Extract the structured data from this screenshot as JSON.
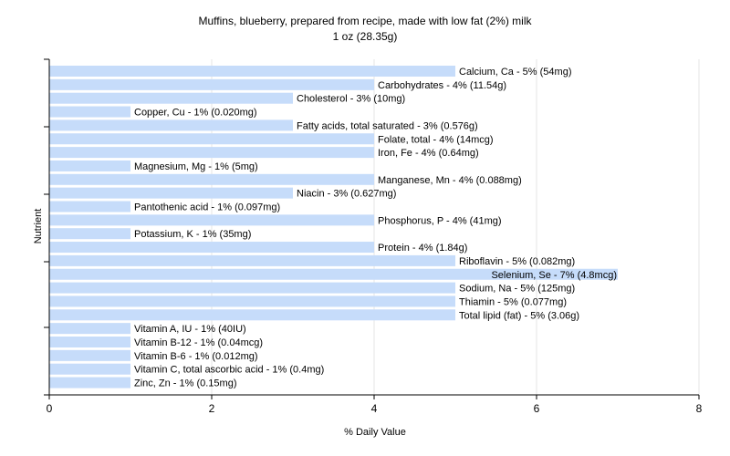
{
  "chart_data": {
    "type": "bar",
    "orientation": "horizontal",
    "title": "Muffins, blueberry, prepared from recipe, made with low fat (2%) milk",
    "subtitle": "1 oz (28.35g)",
    "xlabel": "% Daily Value",
    "ylabel": "Nutrient",
    "xlim": [
      0,
      8
    ],
    "xticks": [
      0,
      2,
      4,
      6,
      8
    ],
    "grid": true,
    "bar_color": "#c6dcfa",
    "categories": [
      "Calcium, Ca",
      "Carbohydrates",
      "Cholesterol",
      "Copper, Cu",
      "Fatty acids, total saturated",
      "Folate, total",
      "Iron, Fe",
      "Magnesium, Mg",
      "Manganese, Mn",
      "Niacin",
      "Pantothenic acid",
      "Phosphorus, P",
      "Potassium, K",
      "Protein",
      "Riboflavin",
      "Selenium, Se",
      "Sodium, Na",
      "Thiamin",
      "Total lipid (fat)",
      "Vitamin A, IU",
      "Vitamin B-12",
      "Vitamin B-6",
      "Vitamin C, total ascorbic acid",
      "Zinc, Zn"
    ],
    "values": [
      5,
      4,
      3,
      1,
      3,
      4,
      4,
      1,
      4,
      3,
      1,
      4,
      1,
      4,
      5,
      7,
      5,
      5,
      5,
      1,
      1,
      1,
      1,
      1
    ],
    "labels": [
      "Calcium, Ca - 5% (54mg)",
      "Carbohydrates - 4% (11.54g)",
      "Cholesterol - 3% (10mg)",
      "Copper, Cu - 1% (0.020mg)",
      "Fatty acids, total saturated - 3% (0.576g)",
      "Folate, total - 4% (14mcg)",
      "Iron, Fe - 4% (0.64mg)",
      "Magnesium, Mg - 1% (5mg)",
      "Manganese, Mn - 4% (0.088mg)",
      "Niacin - 3% (0.627mg)",
      "Pantothenic acid - 1% (0.097mg)",
      "Phosphorus, P - 4% (41mg)",
      "Potassium, K - 1% (35mg)",
      "Protein - 4% (1.84g)",
      "Riboflavin - 5% (0.082mg)",
      "Selenium, Se - 7% (4.8mcg)",
      "Sodium, Na - 5% (125mg)",
      "Thiamin - 5% (0.077mg)",
      "Total lipid (fat) - 5% (3.06g)",
      "Vitamin A, IU - 1% (40IU)",
      "Vitamin B-12 - 1% (0.04mcg)",
      "Vitamin B-6 - 1% (0.012mg)",
      "Vitamin C, total ascorbic acid - 1% (0.4mg)",
      "Zinc, Zn - 1% (0.15mg)"
    ]
  }
}
